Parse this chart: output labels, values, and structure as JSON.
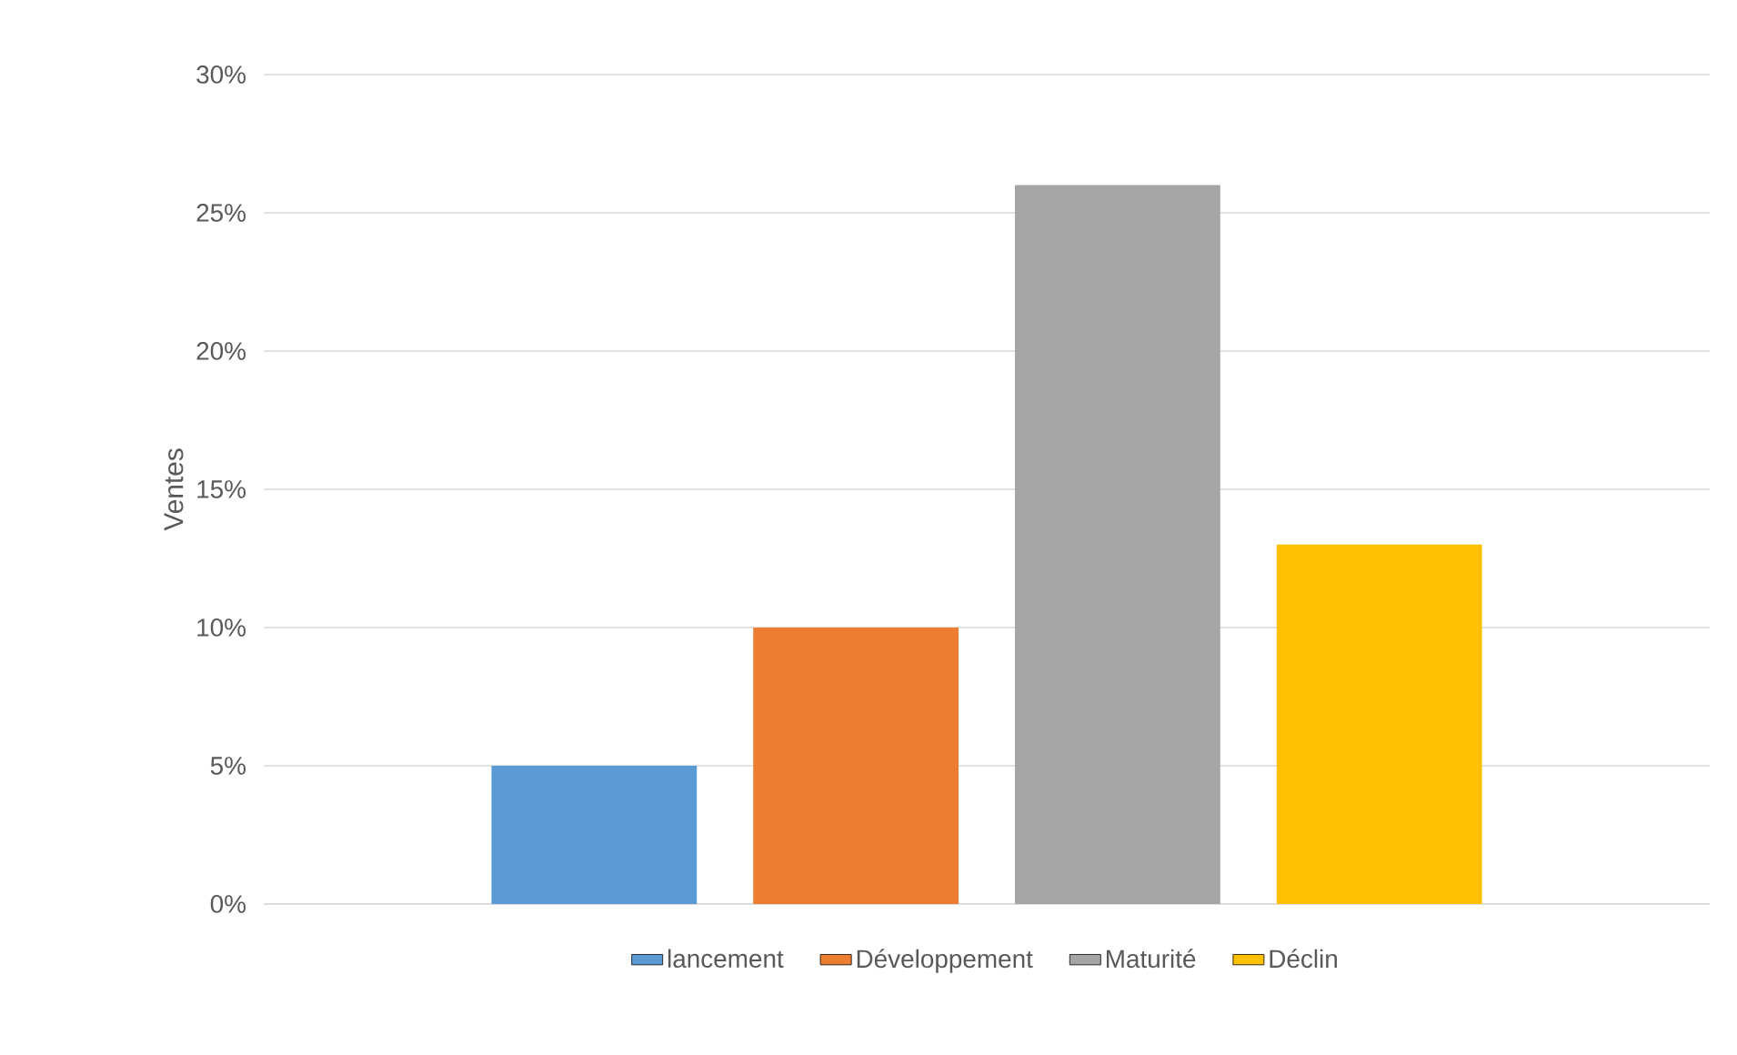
{
  "chart_data": {
    "type": "bar",
    "ylabel": "Ventes",
    "categories": [
      null
    ],
    "series": [
      {
        "name": "lancement",
        "color": "#5b9bd5",
        "values": [
          5
        ]
      },
      {
        "name": "Développement",
        "color": "#ed7d31",
        "values": [
          10
        ]
      },
      {
        "name": "Maturité",
        "color": "#a5a5a5",
        "values": [
          26
        ]
      },
      {
        "name": "Déclin",
        "color": "#ffc000",
        "values": [
          13
        ]
      }
    ],
    "ylim": [
      0,
      30
    ],
    "yticks": [
      {
        "value": 0,
        "label": "0%"
      },
      {
        "value": 5,
        "label": "5%"
      },
      {
        "value": 10,
        "label": "10%"
      },
      {
        "value": 15,
        "label": "15%"
      },
      {
        "value": 20,
        "label": "20%"
      },
      {
        "value": 25,
        "label": "25%"
      },
      {
        "value": 30,
        "label": "30%"
      }
    ],
    "grid": "y",
    "legend": "bottom"
  }
}
